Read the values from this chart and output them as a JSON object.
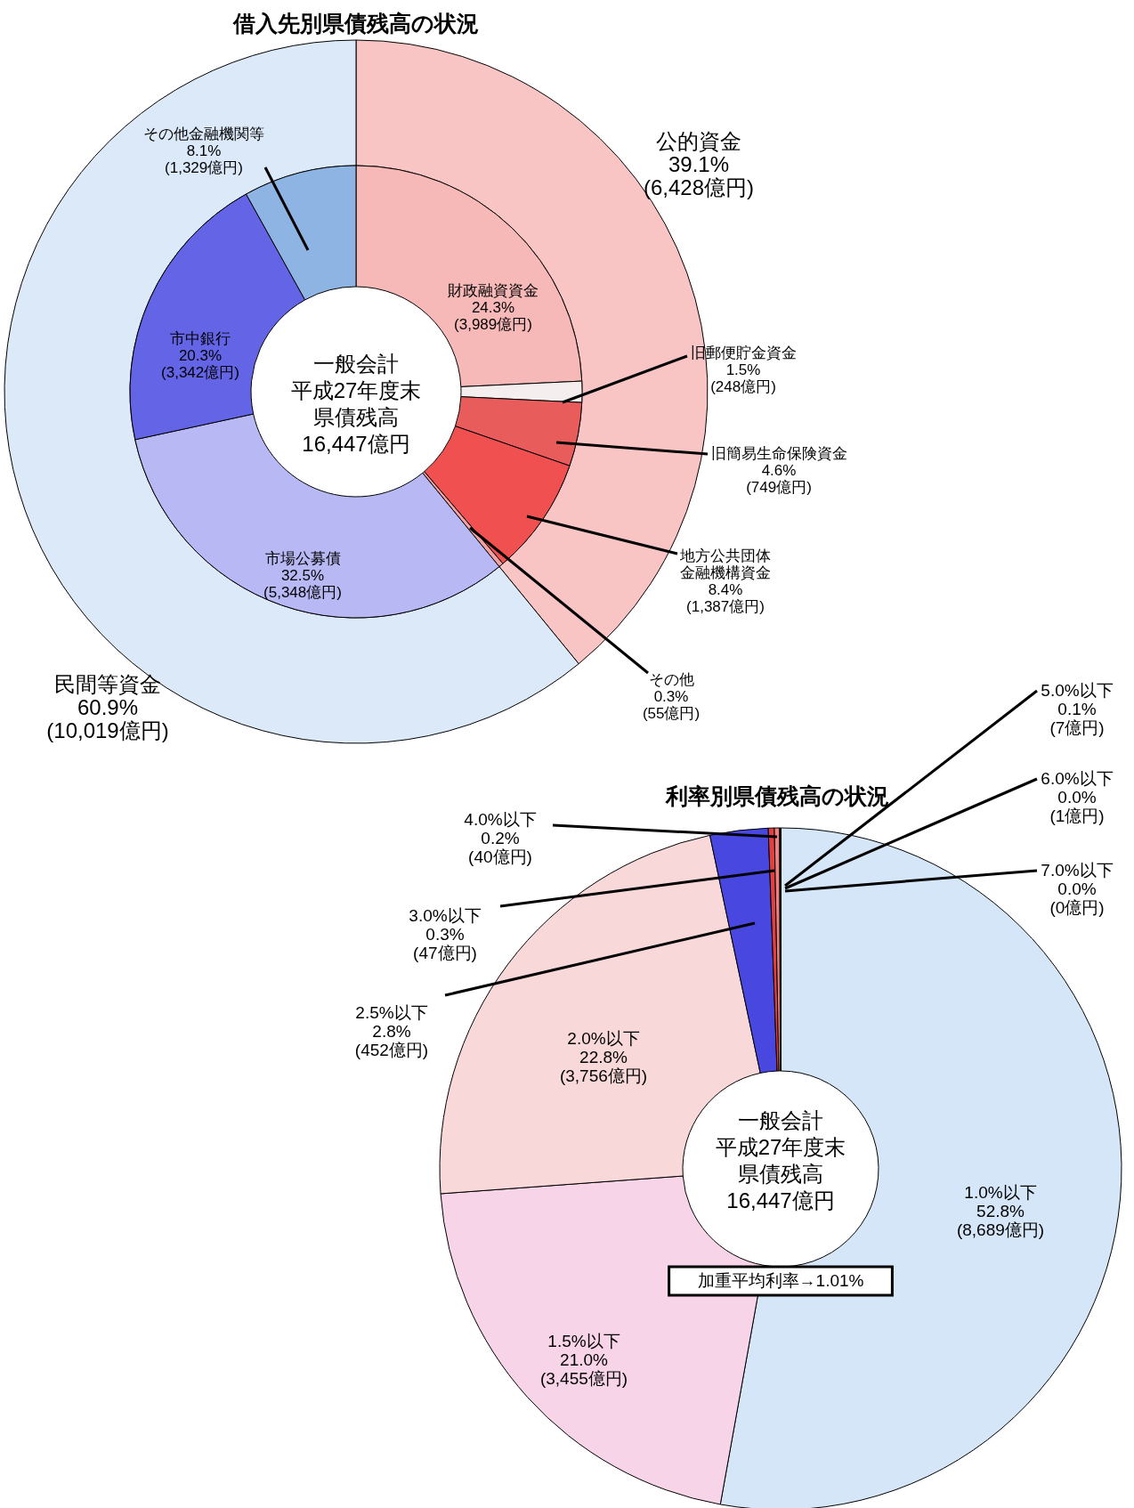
{
  "chart_data": [
    {
      "type": "donut",
      "title": "借入先別県債残高の状況",
      "categories": [
        "公的資金",
        "民間等資金"
      ],
      "values": [
        6428,
        10019
      ],
      "colors": [
        "#f9c4c4",
        "#dce9f8"
      ],
      "value_labels": [
        "39.1%\n(6,428億円)",
        "60.9%\n(10,019億円)"
      ]
    },
    {
      "type": "donut",
      "categories": [
        "財政融資資金",
        "旧郵便貯金資金",
        "旧簡易生命保険資金",
        "地方公共団体金融機構資金",
        "その他",
        "市場公募債",
        "市中銀行",
        "その他金融機関等"
      ],
      "values": [
        3989,
        248,
        749,
        1387,
        55,
        5348,
        3342,
        1329
      ],
      "colors": [
        "#f7b8b8",
        "#f4eeee",
        "#e85c5c",
        "#f05050",
        "#f3a0a0",
        "#b8b8f4",
        "#6464e6",
        "#8db4e2"
      ],
      "value_labels": [
        "24.3%\n(3,989億円)",
        "1.5%\n(248億円)",
        "4.6%\n(749億円)",
        "8.4%\n(1,387億円)",
        "0.3%\n(55億円)",
        "32.5%\n(5,348億円)",
        "20.3%\n(3,342億円)",
        "8.1%\n(1,329億円)"
      ],
      "annotations": [
        "一般会計",
        "平成27年度末",
        "県債残高",
        "16,447億円"
      ]
    },
    {
      "type": "donut",
      "title": "利率別県債残高の状況",
      "categories": [
        "1.0%以下",
        "1.5%以下",
        "2.0%以下",
        "2.5%以下",
        "3.0%以下",
        "4.0%以下",
        "5.0%以下",
        "6.0%以下",
        "7.0%以下"
      ],
      "values": [
        8689,
        3455,
        3756,
        452,
        47,
        40,
        7,
        1,
        0
      ],
      "colors": [
        "#d4e6f8",
        "#f8d4e8",
        "#f8d8d8",
        "#4848e0",
        "#e04040",
        "#f08080",
        "#202020",
        "#202020",
        "#202020"
      ],
      "value_labels": [
        "52.8%\n(8,689億円)",
        "21.0%\n(3,455億円)",
        "22.8%\n(3,756億円)",
        "2.8%\n(452億円)",
        "0.3%\n(47億円)",
        "0.2%\n(40億円)",
        "0.1%\n(7億円)",
        "0.0%\n(1億円)",
        "0.0%\n(0億円)"
      ],
      "annotations": [
        "一般会計",
        "平成27年度末",
        "県債残高",
        "16,447億円",
        "加重平均利率→1.01%"
      ]
    }
  ]
}
